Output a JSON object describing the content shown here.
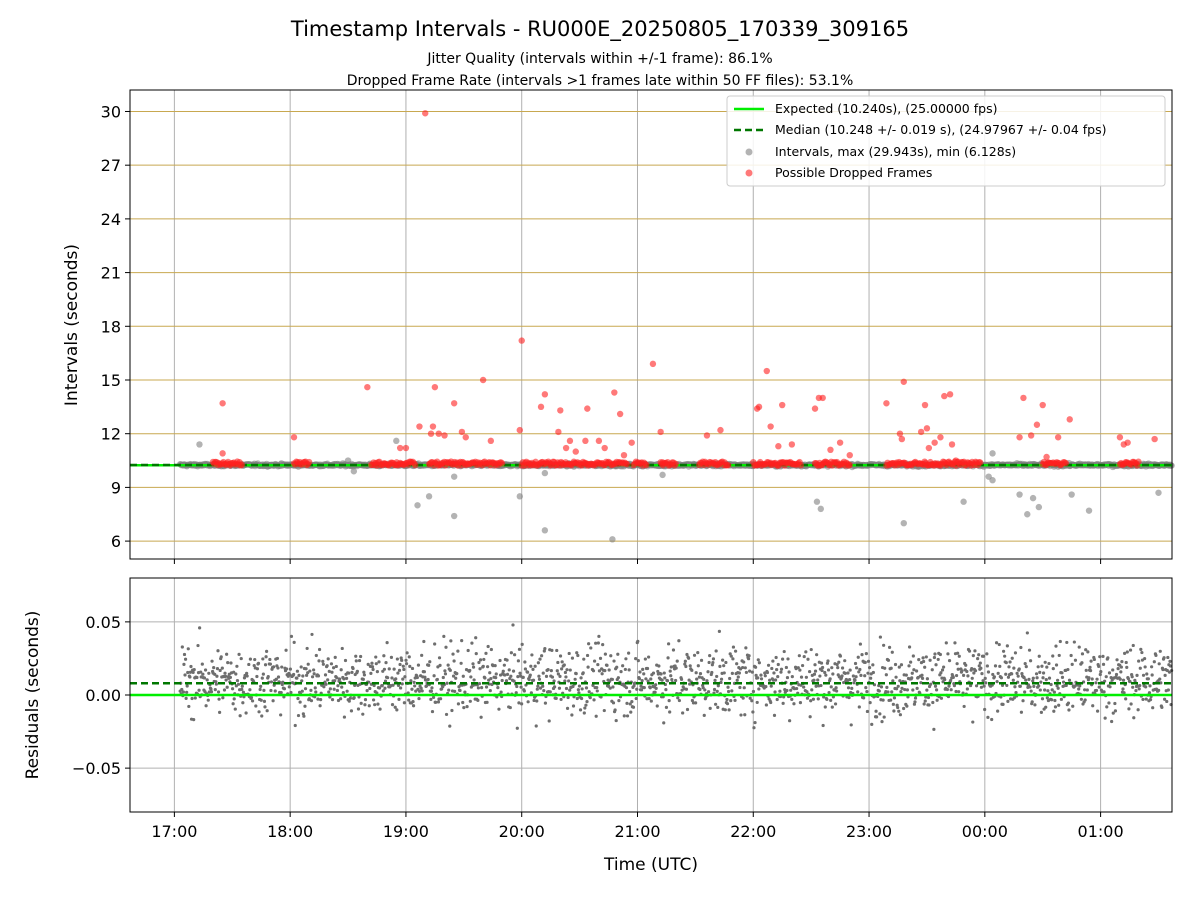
{
  "title": "Timestamp Intervals - RU000E_20250805_170339_309165",
  "subtitle_lines": [
    "Jitter Quality (intervals within +/-1 frame): 86.1%",
    "Dropped Frame Rate (intervals >1 frames late within 50 FF files): 53.1%"
  ],
  "colors": {
    "expected": "#00ee00",
    "median": "#007700",
    "intervals": "#808080",
    "dropped": "#ff2020",
    "ygrid": "#c8a850",
    "xgrid": "#b0b0b0",
    "residual": "#6e6e6e"
  },
  "chart_data": [
    {
      "type": "scatter",
      "panel": "top",
      "xlabel": "",
      "ylabel": "Intervals (seconds)",
      "xlim": [
        "16:37",
        "01:37"
      ],
      "ylim": [
        5.0,
        31.2
      ],
      "yticks": [
        6,
        9,
        12,
        15,
        18,
        21,
        24,
        27,
        30
      ],
      "xticks": [
        "17:00",
        "18:00",
        "19:00",
        "20:00",
        "21:00",
        "22:00",
        "23:00",
        "00:00",
        "01:00"
      ],
      "grid": true,
      "legend_position": "top-right",
      "legend": [
        "Expected (10.240s), (25.00000 fps)",
        "Median (10.248 +/- 0.019 s), (24.97967 +/- 0.04 fps)",
        "Intervals, max (29.943s), min (6.128s)",
        "Possible Dropped Frames"
      ],
      "expected": 10.24,
      "median": 10.248,
      "dropped_frames": [
        {
          "x": "19:10",
          "y": 29.9
        },
        {
          "x": "17:25",
          "y": 13.7
        },
        {
          "x": "17:25",
          "y": 10.9
        },
        {
          "x": "18:02",
          "y": 11.8
        },
        {
          "x": "18:40",
          "y": 14.6
        },
        {
          "x": "18:57",
          "y": 11.2
        },
        {
          "x": "19:00",
          "y": 11.2
        },
        {
          "x": "19:07",
          "y": 12.4
        },
        {
          "x": "19:13",
          "y": 12.0
        },
        {
          "x": "19:14",
          "y": 12.4
        },
        {
          "x": "19:15",
          "y": 14.6
        },
        {
          "x": "19:17",
          "y": 12.0
        },
        {
          "x": "19:20",
          "y": 11.9
        },
        {
          "x": "19:25",
          "y": 13.7
        },
        {
          "x": "19:29",
          "y": 12.1
        },
        {
          "x": "19:31",
          "y": 11.8
        },
        {
          "x": "19:40",
          "y": 15.0
        },
        {
          "x": "19:44",
          "y": 11.6
        },
        {
          "x": "20:00",
          "y": 17.2
        },
        {
          "x": "19:59",
          "y": 12.2
        },
        {
          "x": "20:10",
          "y": 13.5
        },
        {
          "x": "20:12",
          "y": 14.2
        },
        {
          "x": "20:19",
          "y": 12.1
        },
        {
          "x": "20:20",
          "y": 13.3
        },
        {
          "x": "20:23",
          "y": 11.2
        },
        {
          "x": "20:25",
          "y": 11.6
        },
        {
          "x": "20:28",
          "y": 11.0
        },
        {
          "x": "20:33",
          "y": 11.6
        },
        {
          "x": "20:34",
          "y": 13.4
        },
        {
          "x": "20:40",
          "y": 11.6
        },
        {
          "x": "20:43",
          "y": 11.2
        },
        {
          "x": "20:48",
          "y": 14.3
        },
        {
          "x": "20:51",
          "y": 13.1
        },
        {
          "x": "20:53",
          "y": 10.8
        },
        {
          "x": "20:57",
          "y": 11.5
        },
        {
          "x": "21:08",
          "y": 15.9
        },
        {
          "x": "21:12",
          "y": 12.1
        },
        {
          "x": "21:13",
          "y": 10.4
        },
        {
          "x": "21:36",
          "y": 11.9
        },
        {
          "x": "21:43",
          "y": 12.2
        },
        {
          "x": "22:02",
          "y": 13.4
        },
        {
          "x": "22:03",
          "y": 13.5
        },
        {
          "x": "22:07",
          "y": 15.5
        },
        {
          "x": "22:09",
          "y": 12.4
        },
        {
          "x": "22:13",
          "y": 11.3
        },
        {
          "x": "22:15",
          "y": 13.6
        },
        {
          "x": "22:20",
          "y": 11.4
        },
        {
          "x": "22:32",
          "y": 13.4
        },
        {
          "x": "22:34",
          "y": 14.0
        },
        {
          "x": "22:36",
          "y": 14.0
        },
        {
          "x": "22:40",
          "y": 11.1
        },
        {
          "x": "22:45",
          "y": 11.5
        },
        {
          "x": "22:50",
          "y": 10.8
        },
        {
          "x": "23:09",
          "y": 13.7
        },
        {
          "x": "23:16",
          "y": 12.0
        },
        {
          "x": "23:17",
          "y": 11.7
        },
        {
          "x": "23:18",
          "y": 14.9
        },
        {
          "x": "23:27",
          "y": 12.1
        },
        {
          "x": "23:29",
          "y": 13.6
        },
        {
          "x": "23:30",
          "y": 12.3
        },
        {
          "x": "23:31",
          "y": 11.2
        },
        {
          "x": "23:34",
          "y": 11.5
        },
        {
          "x": "23:37",
          "y": 11.8
        },
        {
          "x": "23:39",
          "y": 14.1
        },
        {
          "x": "23:42",
          "y": 14.2
        },
        {
          "x": "23:43",
          "y": 11.4
        },
        {
          "x": "23:45",
          "y": 10.5
        },
        {
          "x": "00:18",
          "y": 11.8
        },
        {
          "x": "00:20",
          "y": 14.0
        },
        {
          "x": "00:24",
          "y": 11.9
        },
        {
          "x": "00:27",
          "y": 12.5
        },
        {
          "x": "00:30",
          "y": 13.6
        },
        {
          "x": "00:32",
          "y": 10.7
        },
        {
          "x": "00:38",
          "y": 11.8
        },
        {
          "x": "00:44",
          "y": 12.8
        },
        {
          "x": "01:10",
          "y": 11.8
        },
        {
          "x": "01:12",
          "y": 11.4
        },
        {
          "x": "01:14",
          "y": 11.5
        },
        {
          "x": "01:28",
          "y": 11.7
        }
      ],
      "intervals_outliers": [
        {
          "x": "17:13",
          "y": 11.4
        },
        {
          "x": "18:55",
          "y": 11.6
        },
        {
          "x": "19:06",
          "y": 8.0
        },
        {
          "x": "19:12",
          "y": 8.5
        },
        {
          "x": "19:25",
          "y": 7.4
        },
        {
          "x": "19:25",
          "y": 9.6
        },
        {
          "x": "19:59",
          "y": 8.5
        },
        {
          "x": "20:12",
          "y": 6.6
        },
        {
          "x": "20:12",
          "y": 9.8
        },
        {
          "x": "20:47",
          "y": 6.1
        },
        {
          "x": "21:13",
          "y": 9.7
        },
        {
          "x": "22:33",
          "y": 8.2
        },
        {
          "x": "22:35",
          "y": 7.8
        },
        {
          "x": "23:18",
          "y": 7.0
        },
        {
          "x": "23:49",
          "y": 8.2
        },
        {
          "x": "00:02",
          "y": 9.6
        },
        {
          "x": "00:04",
          "y": 10.9
        },
        {
          "x": "00:04",
          "y": 9.4
        },
        {
          "x": "00:18",
          "y": 8.6
        },
        {
          "x": "00:22",
          "y": 7.5
        },
        {
          "x": "00:25",
          "y": 8.4
        },
        {
          "x": "00:28",
          "y": 7.9
        },
        {
          "x": "00:45",
          "y": 8.6
        },
        {
          "x": "00:54",
          "y": 7.7
        },
        {
          "x": "01:30",
          "y": 8.7
        },
        {
          "x": "18:30",
          "y": 10.5
        },
        {
          "x": "18:33",
          "y": 9.9
        }
      ],
      "intervals_base": {
        "x_range": [
          "17:03",
          "01:37"
        ],
        "center": 10.25
      },
      "dropped_clusters": [
        [
          "17:20",
          "17:35"
        ],
        [
          "18:02",
          "18:10"
        ],
        [
          "18:42",
          "19:05"
        ],
        [
          "19:12",
          "19:50"
        ],
        [
          "20:00",
          "20:55"
        ],
        [
          "20:58",
          "21:05"
        ],
        [
          "21:12",
          "21:20"
        ],
        [
          "21:32",
          "21:47"
        ],
        [
          "22:00",
          "22:25"
        ],
        [
          "22:32",
          "22:50"
        ],
        [
          "23:09",
          "23:58"
        ],
        [
          "00:30",
          "00:42"
        ],
        [
          "01:10",
          "01:20"
        ]
      ]
    },
    {
      "type": "scatter",
      "panel": "bottom",
      "xlabel": "Time (UTC)",
      "ylabel": "Residuals (seconds)",
      "xlim": [
        "16:37",
        "01:37"
      ],
      "ylim": [
        -0.08,
        0.08
      ],
      "yticks": [
        -0.05,
        0.0,
        0.05
      ],
      "ytick_labels": [
        "−0.05",
        "0.00",
        "0.05"
      ],
      "xticks": [
        "17:00",
        "18:00",
        "19:00",
        "20:00",
        "21:00",
        "22:00",
        "23:00",
        "00:00",
        "01:00"
      ],
      "grid": true,
      "expected": 0.0,
      "median": 0.008,
      "residuals_center": 0.01,
      "residuals_spread": 0.02,
      "x_range": [
        "17:03",
        "01:37"
      ]
    }
  ]
}
